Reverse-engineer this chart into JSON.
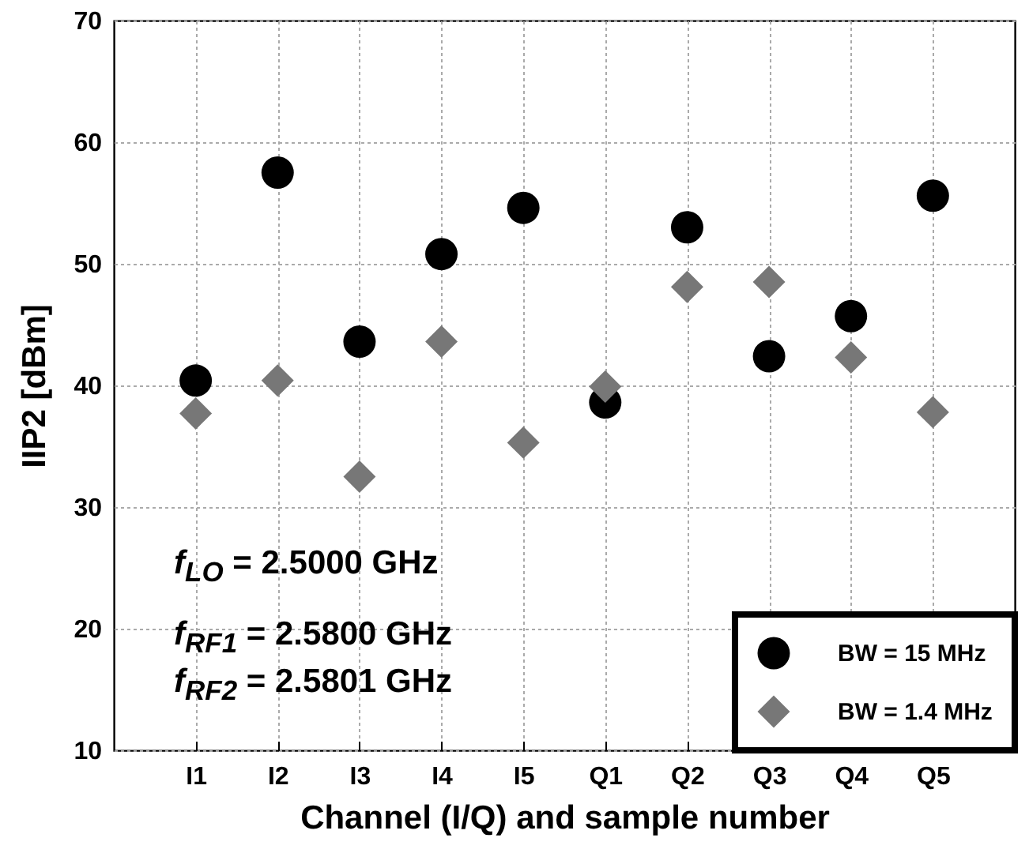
{
  "chart_data": {
    "type": "scatter",
    "xlabel": "Channel (I/Q) and sample number",
    "ylabel": "IIP2 [dBm]",
    "categories": [
      "I1",
      "I2",
      "I3",
      "I4",
      "I5",
      "Q1",
      "Q2",
      "Q3",
      "Q4",
      "Q5"
    ],
    "series": [
      {
        "name": "BW = 15 MHz",
        "color": "#000000",
        "marker": "circle",
        "values": [
          40.4,
          57.5,
          43.6,
          50.8,
          54.6,
          38.6,
          53.0,
          42.4,
          45.7,
          55.6
        ]
      },
      {
        "name": "BW = 1.4 MHz",
        "color": "#777777",
        "marker": "diamond",
        "values": [
          37.7,
          40.4,
          32.5,
          43.6,
          35.3,
          39.9,
          48.1,
          48.5,
          42.3,
          37.8
        ]
      }
    ],
    "ylim": [
      10,
      70
    ],
    "yticks": [
      10,
      20,
      30,
      40,
      50,
      60,
      70
    ],
    "grid": true,
    "legend": "bottom right",
    "annotations": [
      "f$_{LO}$ = 2.5000 GHz",
      "f$_{RF1}$ = 2.5800 GHz",
      "f$_{RF2}$ = 2.5801 GHz"
    ]
  }
}
